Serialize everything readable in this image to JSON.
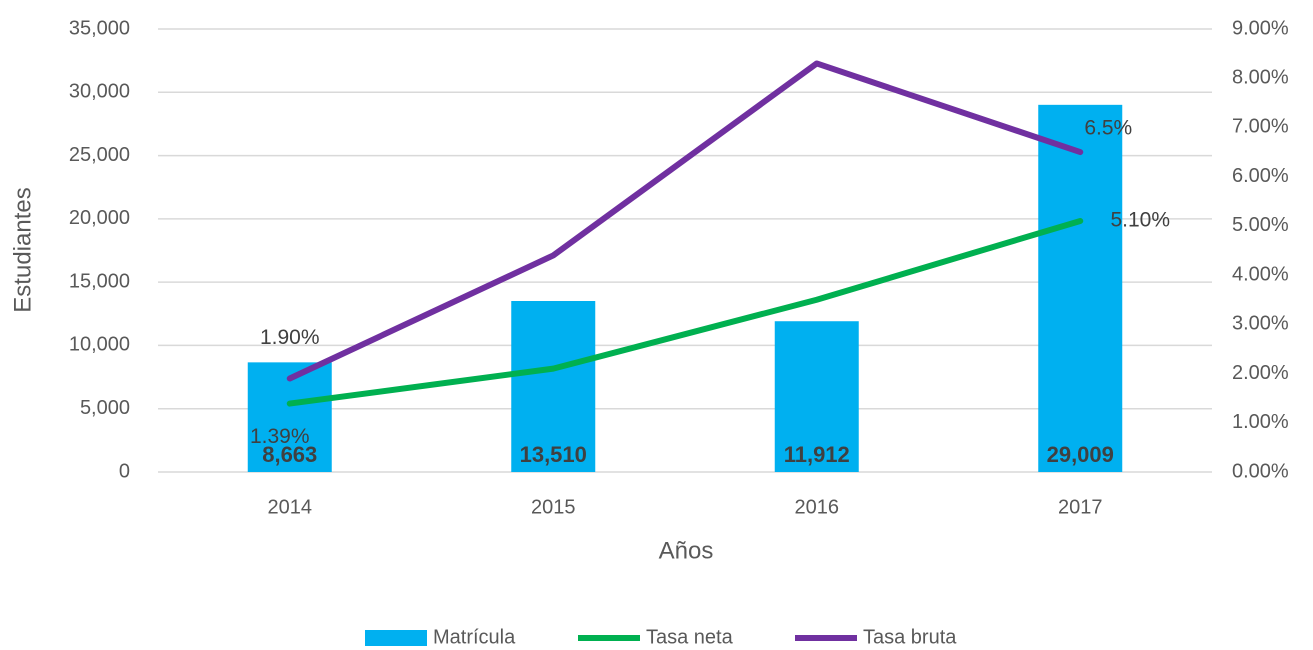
{
  "chart_data": {
    "type": "bar_line",
    "categories": [
      "2014",
      "2015",
      "2016",
      "2017"
    ],
    "xlabel": "Años",
    "ylabel": "Estudiantes",
    "ylim": [
      0,
      35000
    ],
    "yticks": [
      0,
      {
        "value": 5000,
        "label": "5,000"
      },
      {
        "value": 10000,
        "label": "10,000"
      },
      {
        "value": 15000,
        "label": "15,000"
      },
      {
        "value": 20000,
        "label": "20,000"
      },
      {
        "value": 25000,
        "label": "25,000"
      },
      {
        "value": 30000,
        "label": "30,000"
      },
      {
        "value": 35000,
        "label": "35,000"
      }
    ],
    "y2lim": [
      0,
      9
    ],
    "y2ticks": [
      {
        "value": 0,
        "label": "0.00%"
      },
      {
        "value": 1,
        "label": "1.00%"
      },
      {
        "value": 2,
        "label": "2.00%"
      },
      {
        "value": 3,
        "label": "3.00%"
      },
      {
        "value": 4,
        "label": "4.00%"
      },
      {
        "value": 5,
        "label": "5.00%"
      },
      {
        "value": 6,
        "label": "6.00%"
      },
      {
        "value": 7,
        "label": "7.00%"
      },
      {
        "value": 8,
        "label": "8.00%"
      },
      {
        "value": 9,
        "label": "9.00%"
      }
    ],
    "grid": true,
    "legend": "bottom",
    "series": [
      {
        "name": "Matrícula",
        "type": "bar",
        "color": "#00b0f0",
        "values": [
          8663,
          13510,
          11912,
          29009
        ],
        "value_labels": [
          "8,663",
          "13,510",
          "11,912",
          "29,009"
        ]
      },
      {
        "name": "Tasa neta",
        "type": "line",
        "axis": "y2",
        "color": "#00b050",
        "values": [
          1.39,
          2.1,
          3.5,
          5.1
        ],
        "value_labels": [
          "1.39%",
          null,
          null,
          "5.10%"
        ]
      },
      {
        "name": "Tasa bruta",
        "type": "line",
        "axis": "y2",
        "color": "#7030a0",
        "values": [
          1.9,
          4.4,
          8.3,
          6.5
        ],
        "value_labels": [
          "1.90%",
          null,
          null,
          "6.5%"
        ]
      }
    ]
  }
}
